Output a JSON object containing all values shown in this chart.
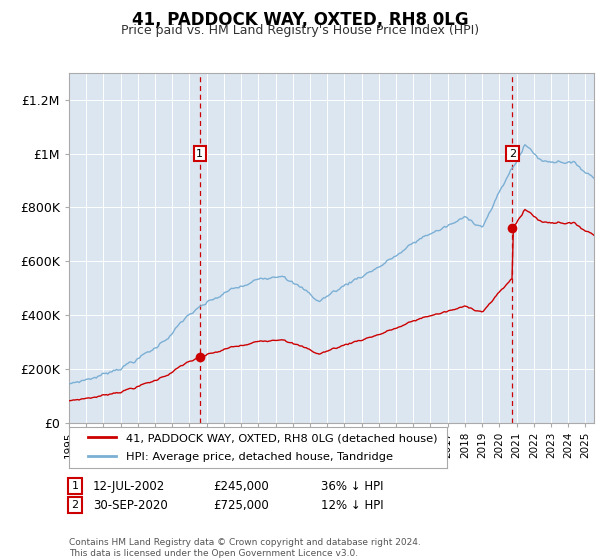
{
  "title": "41, PADDOCK WAY, OXTED, RH8 0LG",
  "subtitle": "Price paid vs. HM Land Registry's House Price Index (HPI)",
  "legend_line1": "41, PADDOCK WAY, OXTED, RH8 0LG (detached house)",
  "legend_line2": "HPI: Average price, detached house, Tandridge",
  "annotation1_label": "1",
  "annotation1_date": "12-JUL-2002",
  "annotation1_price": "£245,000",
  "annotation1_hpi": "36% ↓ HPI",
  "annotation1_year": 2002.6,
  "annotation1_value": 245000,
  "annotation2_label": "2",
  "annotation2_date": "30-SEP-2020",
  "annotation2_price": "£725,000",
  "annotation2_hpi": "12% ↓ HPI",
  "annotation2_year": 2020.75,
  "annotation2_value": 725000,
  "red_line_color": "#cc0000",
  "blue_line_color": "#7bafd4",
  "background_color": "#dce6f1",
  "footer": "Contains HM Land Registry data © Crown copyright and database right 2024.\nThis data is licensed under the Open Government Licence v3.0.",
  "ylim": [
    0,
    1300000
  ],
  "xmin": 1995.0,
  "xmax": 2025.5
}
